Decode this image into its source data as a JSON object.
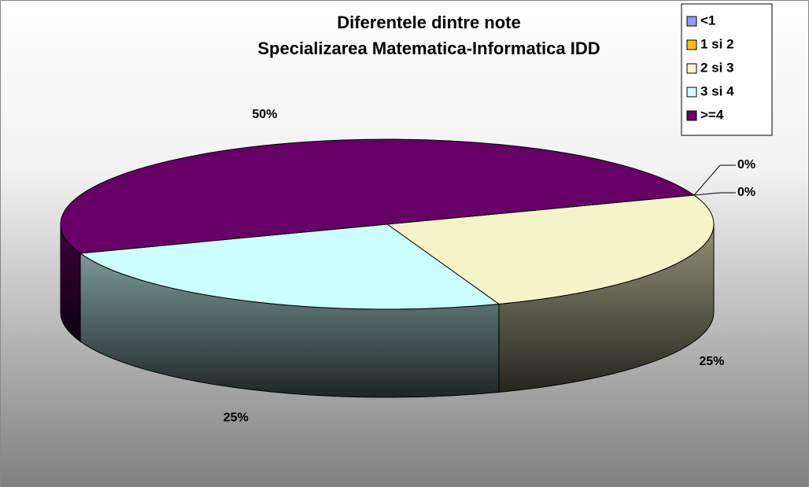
{
  "chart_data": {
    "type": "pie",
    "title": [
      "Diferentele dintre note",
      "Specializarea Matematica-Informatica IDD"
    ],
    "categories": [
      "<1",
      "1 si 2",
      "2 si 3",
      "3 si 4",
      ">=4"
    ],
    "values": [
      0,
      0,
      25,
      25,
      50
    ],
    "value_labels": [
      "0%",
      "0%",
      "25%",
      "25%",
      "50%"
    ],
    "colors": [
      "#9999ff",
      "#ffc000",
      "#f4f4c8",
      "#ccffff",
      "#660066"
    ],
    "legend": "top-right"
  }
}
